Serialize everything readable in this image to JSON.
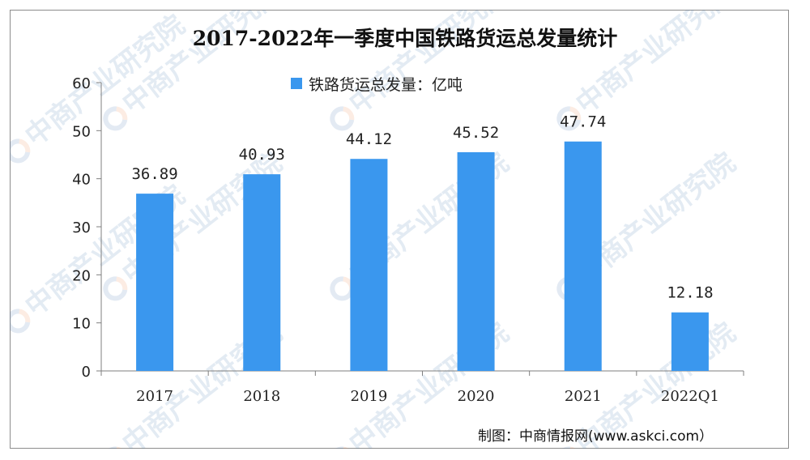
{
  "chart_data": {
    "type": "bar",
    "title": "2017-2022年一季度中国铁路货运总发量统计",
    "categories": [
      "2017",
      "2018",
      "2019",
      "2020",
      "2021",
      "2022Q1"
    ],
    "series": [
      {
        "name": "铁路货运总发量：亿吨",
        "values": [
          36.89,
          40.93,
          44.12,
          45.52,
          47.74,
          12.18
        ]
      }
    ],
    "value_labels": [
      "36.89",
      "40.93",
      "44.12",
      "45.52",
      "47.74",
      "12.18"
    ],
    "yticks": [
      "0",
      "10",
      "20",
      "30",
      "40",
      "50",
      "60"
    ],
    "ylim": [
      0,
      60
    ],
    "grid": false,
    "legend_position": "top-center",
    "bar_color": "#3a97ee"
  },
  "watermark": "中商产业研究院",
  "credit": "制图：中商情报网(www.askci.com）"
}
